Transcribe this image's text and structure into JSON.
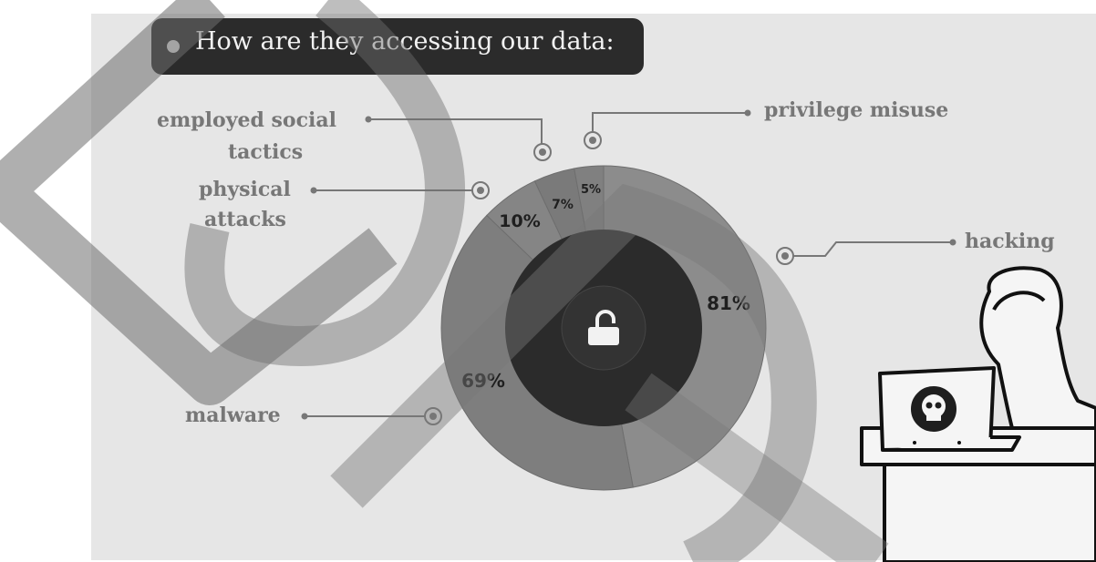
{
  "title": "How are they accessing our data:",
  "colors": {
    "panel": "#e6e6e6",
    "ring": "#8a8a8a",
    "core": "#2b2b2b",
    "label": "#777777"
  },
  "labels": {
    "social_1": "employed social",
    "social_2": "tactics",
    "physical_1": "physical",
    "physical_2": "attacks",
    "malware": "malware",
    "privilege": "privilege misuse",
    "hacking": "hacking"
  },
  "center_icon": "unlock-icon",
  "illustration": {
    "figure": "hooded-hacker",
    "laptop_icon": "skull-icon"
  },
  "chart_data": {
    "type": "pie",
    "title": "How are they accessing our data:",
    "categories": [
      "hacking",
      "malware",
      "physical attacks",
      "employed social tactics",
      "privilege misuse"
    ],
    "values": [
      81,
      69,
      10,
      7,
      5
    ],
    "data_labels": [
      "81%",
      "69%",
      "10%",
      "7%",
      "5%"
    ],
    "unit": "%"
  }
}
